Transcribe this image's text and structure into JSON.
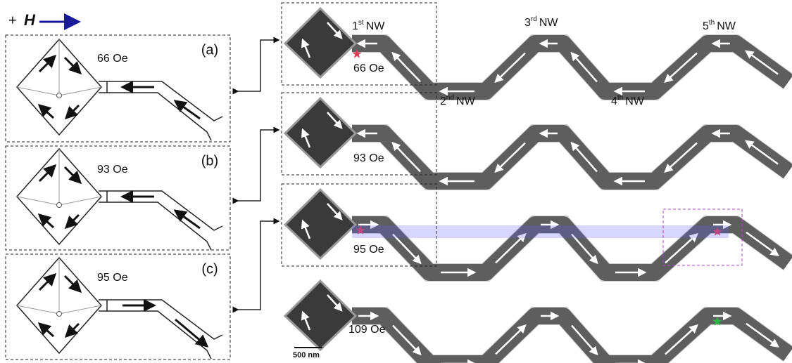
{
  "header": {
    "sign": "+",
    "field": "H"
  },
  "schematics": [
    {
      "label": "(a)",
      "field": "66 Oe"
    },
    {
      "label": "(b)",
      "field": "93 Oe"
    },
    {
      "label": "(c)",
      "field": "95 Oe"
    }
  ],
  "images": [
    {
      "field": "66 Oe"
    },
    {
      "field": "93 Oe"
    },
    {
      "field": "95 Oe"
    },
    {
      "field": "109 Oe"
    }
  ],
  "nanowires": [
    {
      "ordinal": "1",
      "suffix": "st",
      "name": "NW"
    },
    {
      "ordinal": "2",
      "suffix": "nd",
      "name": "NW"
    },
    {
      "ordinal": "3",
      "suffix": "rd",
      "name": "NW"
    },
    {
      "ordinal": "4",
      "suffix": "th",
      "name": "NW"
    },
    {
      "ordinal": "5",
      "suffix": "th",
      "name": "NW"
    }
  ],
  "scale_bar": "500 nm"
}
